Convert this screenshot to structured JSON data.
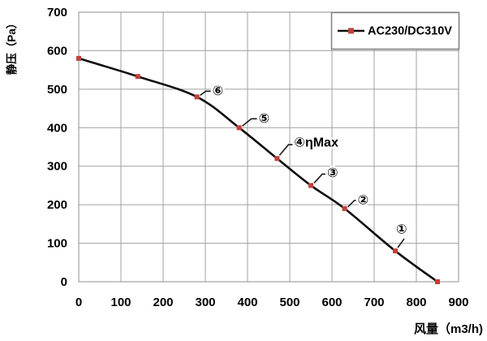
{
  "colors": {
    "background": "#ffffff",
    "grid": "#a0a0a0",
    "plot_border": "#a0a0a0",
    "line": "#0d0d0d",
    "marker": "#c0403a",
    "text": "#000000",
    "legend_border": "#7f7f7f",
    "legend_fill": "#ffffff",
    "leader": "#1a1a1a"
  },
  "chart_data": {
    "type": "line",
    "title": "",
    "xlabel": "风量（m3/h)",
    "ylabel": "静压（Pa）",
    "xlim": [
      0,
      900
    ],
    "ylim": [
      0,
      700
    ],
    "xticks": [
      0,
      100,
      200,
      300,
      400,
      500,
      600,
      700,
      800,
      900
    ],
    "yticks": [
      0,
      100,
      200,
      300,
      400,
      500,
      600,
      700
    ],
    "grid": true,
    "legend": {
      "position": "top-right",
      "entries": [
        {
          "label": "AC230/DC310V",
          "line_color": "#0d0d0d",
          "marker": "square",
          "marker_color": "#c0403a"
        }
      ]
    },
    "series": [
      {
        "name": "AC230/DC310V",
        "points": [
          [
            0,
            580
          ],
          [
            140,
            533
          ],
          [
            280,
            480
          ],
          [
            380,
            400
          ],
          [
            470,
            320
          ],
          [
            550,
            250
          ],
          [
            630,
            190
          ],
          [
            750,
            80
          ],
          [
            850,
            0
          ]
        ]
      }
    ],
    "annotations": [
      {
        "label": "⑥",
        "x": 280,
        "y": 480,
        "leader": [
          [
            4,
            -2
          ],
          [
            11,
            -7
          ],
          [
            17,
            -7
          ]
        ],
        "text_offset": [
          19,
          -7
        ]
      },
      {
        "label": "⑤",
        "x": 380,
        "y": 400,
        "leader": [
          [
            4,
            -2
          ],
          [
            15,
            -11
          ],
          [
            22,
            -11
          ]
        ],
        "text_offset": [
          24,
          -11
        ]
      },
      {
        "label": "④ηMax",
        "x": 470,
        "y": 320,
        "leader": [
          [
            3,
            -4
          ],
          [
            14,
            -17
          ],
          [
            19,
            -17
          ]
        ],
        "text_offset": [
          21,
          -19
        ]
      },
      {
        "label": "③",
        "x": 550,
        "y": 250,
        "leader": [
          [
            4,
            -3
          ],
          [
            14,
            -14
          ],
          [
            18,
            -14
          ]
        ],
        "text_offset": [
          20,
          -15
        ]
      },
      {
        "label": "②",
        "x": 630,
        "y": 190,
        "leader": [
          [
            4,
            -2
          ],
          [
            12,
            -10
          ],
          [
            14,
            -10
          ]
        ],
        "text_offset": [
          16,
          -10
        ]
      },
      {
        "label": "①",
        "x": 750,
        "y": 80,
        "leader": [
          [
            3,
            -4
          ],
          [
            11,
            -15
          ]
        ],
        "text_offset": [
          1,
          -26
        ]
      }
    ]
  }
}
